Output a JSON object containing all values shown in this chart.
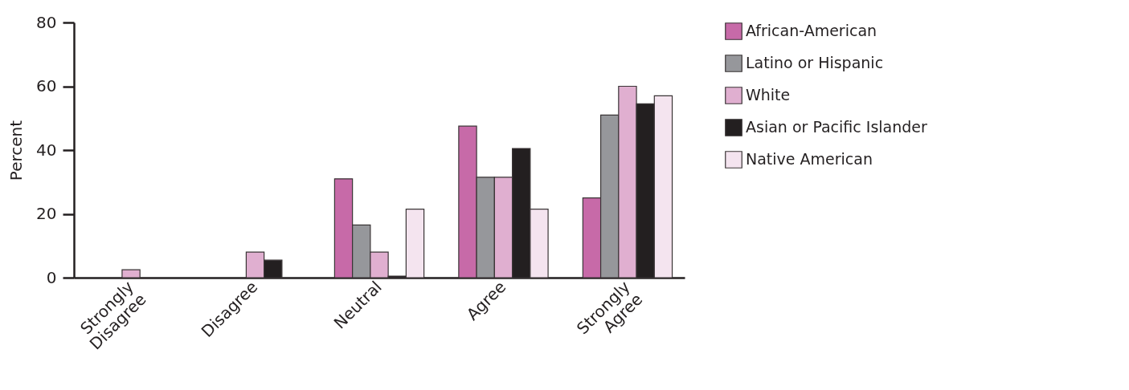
{
  "chart_data": {
    "type": "bar",
    "ylabel": "Percent",
    "categories": [
      "Strongly Disagree",
      "Disagree",
      "Neutral",
      "Agree",
      "Strongly Agree"
    ],
    "series": [
      {
        "name": "African-American",
        "color": "#c76aa8",
        "values": [
          0,
          0,
          31,
          47.5,
          25
        ]
      },
      {
        "name": "Latino or Hispanic",
        "color": "#96979b",
        "values": [
          0,
          0,
          16.5,
          31.5,
          51
        ]
      },
      {
        "name": "White",
        "color": "#e0afd0",
        "values": [
          2.5,
          8,
          8,
          31.5,
          60
        ]
      },
      {
        "name": "Asian or Pacific Islander",
        "color": "#231f20",
        "values": [
          0,
          5.5,
          0.5,
          40.5,
          54.5
        ]
      },
      {
        "name": "Native American",
        "color": "#f4e4ef",
        "values": [
          0,
          0,
          21.5,
          21.5,
          57
        ]
      }
    ],
    "ylim": [
      0,
      80
    ],
    "yticks": [
      0,
      20,
      40,
      60,
      80
    ],
    "legend": "right"
  }
}
